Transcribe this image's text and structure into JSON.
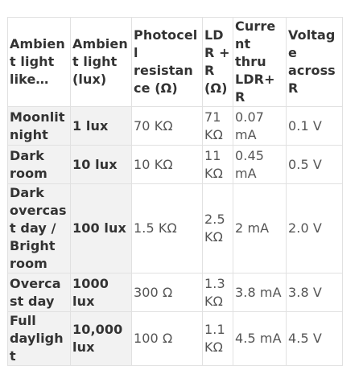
{
  "table": {
    "headers": [
      "Ambient light like…",
      "Ambient light (lux)",
      "Photocell resistance (Ω)",
      "LDR + R (Ω)",
      "Current thru LDR+R",
      "Voltage across R"
    ],
    "rows": [
      [
        "Moonlit night",
        "1 lux",
        "70 KΩ",
        "71 KΩ",
        "0.07 mA",
        "0.1 V"
      ],
      [
        "Dark room",
        "10 lux",
        "10 KΩ",
        "11 KΩ",
        "0.45 mA",
        "0.5 V"
      ],
      [
        "Dark overcast day / Bright room",
        "100 lux",
        "1.5 KΩ",
        "2.5 KΩ",
        "2 mA",
        "2.0 V"
      ],
      [
        "Overcast day",
        "1000 lux",
        "300 Ω",
        "1.3 KΩ",
        "3.8 mA",
        "3.8 V"
      ],
      [
        "Full daylight",
        "10,000 lux",
        "100 Ω",
        "1.1 KΩ",
        "4.5 mA",
        "4.5 V"
      ]
    ]
  }
}
